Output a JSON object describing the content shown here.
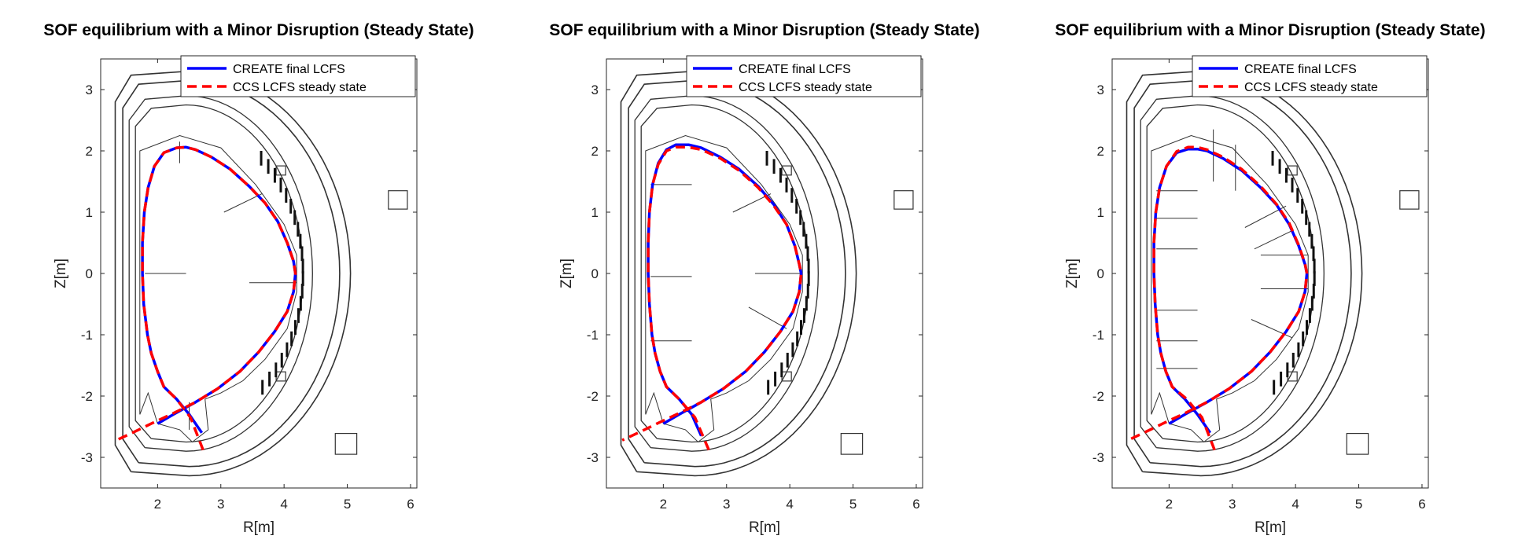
{
  "chart_data": [
    {
      "type": "line",
      "title": "SOF equilibrium with a Minor Disruption (Steady State)",
      "xlabel": "R[m]",
      "ylabel": "Z[m]",
      "xlim": [
        1.1,
        6.1
      ],
      "ylim": [
        -3.5,
        3.5
      ],
      "xticks": [
        2,
        3,
        4,
        5,
        6
      ],
      "yticks": [
        -3,
        -2,
        -1,
        0,
        1,
        2,
        3
      ],
      "grid": false,
      "legend_position": "top-right",
      "series": [
        {
          "name": "CREATE final LCFS",
          "color": "#0000ff",
          "style": "solid",
          "x": [
            2.7,
            2.5,
            2.3,
            2.1,
            2.0,
            1.9,
            1.84,
            1.78,
            1.76,
            1.76,
            1.79,
            1.85,
            1.95,
            2.1,
            2.3,
            2.45,
            2.6,
            2.85,
            3.15,
            3.45,
            3.7,
            3.9,
            4.05,
            4.15,
            4.18,
            4.15,
            4.05,
            3.85,
            3.6,
            3.3,
            2.95,
            2.6,
            2.25,
            2.0
          ],
          "y": [
            -2.6,
            -2.3,
            -2.05,
            -1.85,
            -1.6,
            -1.3,
            -1.0,
            -0.5,
            0.0,
            0.5,
            1.0,
            1.4,
            1.75,
            1.97,
            2.05,
            2.06,
            2.02,
            1.9,
            1.7,
            1.42,
            1.15,
            0.85,
            0.5,
            0.2,
            0.0,
            -0.3,
            -0.62,
            -0.95,
            -1.28,
            -1.6,
            -1.88,
            -2.1,
            -2.3,
            -2.45
          ]
        },
        {
          "name": "CCS  LCFS steady state",
          "color": "#ff0000",
          "style": "dashed",
          "x": [
            2.72,
            2.52,
            2.3,
            2.1,
            2.0,
            1.9,
            1.84,
            1.78,
            1.76,
            1.76,
            1.79,
            1.85,
            1.95,
            2.1,
            2.3,
            2.45,
            2.6,
            2.85,
            3.15,
            3.45,
            3.7,
            3.9,
            4.05,
            4.15,
            4.18,
            4.15,
            4.05,
            3.85,
            3.6,
            3.3,
            2.95,
            2.6,
            2.25,
            1.9,
            1.6,
            1.35
          ],
          "y": [
            -2.88,
            -2.35,
            -2.05,
            -1.85,
            -1.6,
            -1.3,
            -1.0,
            -0.5,
            0.0,
            0.5,
            1.0,
            1.4,
            1.75,
            1.97,
            2.05,
            2.06,
            2.02,
            1.9,
            1.7,
            1.42,
            1.15,
            0.85,
            0.5,
            0.2,
            0.0,
            -0.3,
            -0.62,
            -0.95,
            -1.28,
            -1.6,
            -1.88,
            -2.1,
            -2.28,
            -2.45,
            -2.6,
            -2.72
          ]
        }
      ]
    },
    {
      "type": "line",
      "title": "SOF equilibrium with a Minor Disruption (Steady State)",
      "xlabel": "R[m]",
      "ylabel": "Z[m]",
      "xlim": [
        1.1,
        6.1
      ],
      "ylim": [
        -3.5,
        3.5
      ],
      "xticks": [
        2,
        3,
        4,
        5,
        6
      ],
      "yticks": [
        -3,
        -2,
        -1,
        0,
        1,
        2,
        3
      ],
      "grid": false,
      "legend_position": "top-right",
      "series": [
        {
          "name": "CREATE final LCFS",
          "color": "#0000ff",
          "style": "solid",
          "x": [
            2.6,
            2.45,
            2.25,
            2.05,
            1.95,
            1.87,
            1.82,
            1.78,
            1.76,
            1.76,
            1.78,
            1.83,
            1.92,
            2.05,
            2.2,
            2.4,
            2.6,
            2.9,
            3.2,
            3.5,
            3.75,
            3.95,
            4.08,
            4.15,
            4.18,
            4.15,
            4.05,
            3.85,
            3.6,
            3.3,
            2.95,
            2.6,
            2.25,
            2.0
          ],
          "y": [
            -2.65,
            -2.3,
            -2.05,
            -1.85,
            -1.6,
            -1.3,
            -1.0,
            -0.5,
            0.0,
            0.5,
            1.0,
            1.45,
            1.8,
            2.02,
            2.1,
            2.1,
            2.05,
            1.9,
            1.7,
            1.42,
            1.12,
            0.8,
            0.45,
            0.15,
            0.0,
            -0.3,
            -0.62,
            -0.95,
            -1.28,
            -1.6,
            -1.88,
            -2.1,
            -2.3,
            -2.45
          ]
        },
        {
          "name": "CCS  LCFS steady state",
          "color": "#ff0000",
          "style": "dashed",
          "x": [
            2.72,
            2.5,
            2.25,
            2.05,
            1.95,
            1.87,
            1.82,
            1.78,
            1.76,
            1.76,
            1.78,
            1.83,
            1.92,
            2.05,
            2.2,
            2.4,
            2.6,
            2.9,
            3.2,
            3.5,
            3.75,
            3.95,
            4.08,
            4.15,
            4.18,
            4.15,
            4.05,
            3.85,
            3.6,
            3.3,
            2.95,
            2.6,
            2.25,
            1.9,
            1.6,
            1.35
          ],
          "y": [
            -2.88,
            -2.35,
            -2.05,
            -1.85,
            -1.6,
            -1.3,
            -1.0,
            -0.5,
            0.0,
            0.5,
            1.0,
            1.45,
            1.78,
            2.0,
            2.06,
            2.06,
            2.02,
            1.88,
            1.68,
            1.4,
            1.1,
            0.8,
            0.45,
            0.15,
            0.0,
            -0.3,
            -0.62,
            -0.95,
            -1.28,
            -1.6,
            -1.88,
            -2.1,
            -2.28,
            -2.45,
            -2.6,
            -2.72
          ]
        }
      ]
    },
    {
      "type": "line",
      "title": "SOF equilibrium with a Minor Disruption (Steady State)",
      "xlabel": "R[m]",
      "ylabel": "Z[m]",
      "xlim": [
        1.1,
        6.1
      ],
      "ylim": [
        -3.5,
        3.5
      ],
      "xticks": [
        2,
        3,
        4,
        5,
        6
      ],
      "yticks": [
        -3,
        -2,
        -1,
        0,
        1,
        2,
        3
      ],
      "grid": false,
      "legend_position": "top-right",
      "series": [
        {
          "name": "CREATE final LCFS",
          "color": "#0000ff",
          "style": "solid",
          "x": [
            2.65,
            2.45,
            2.25,
            2.05,
            1.95,
            1.87,
            1.82,
            1.78,
            1.76,
            1.76,
            1.79,
            1.85,
            1.96,
            2.12,
            2.3,
            2.45,
            2.6,
            2.85,
            3.15,
            3.45,
            3.7,
            3.9,
            4.05,
            4.15,
            4.18,
            4.15,
            4.05,
            3.85,
            3.6,
            3.3,
            2.95,
            2.6,
            2.25,
            2.0
          ],
          "y": [
            -2.6,
            -2.3,
            -2.05,
            -1.85,
            -1.6,
            -1.3,
            -1.0,
            -0.5,
            0.0,
            0.5,
            1.0,
            1.4,
            1.75,
            1.97,
            2.03,
            2.03,
            2.0,
            1.88,
            1.68,
            1.4,
            1.12,
            0.8,
            0.45,
            0.15,
            0.0,
            -0.3,
            -0.62,
            -0.95,
            -1.28,
            -1.6,
            -1.88,
            -2.1,
            -2.3,
            -2.45
          ]
        },
        {
          "name": "CCS  LCFS steady state",
          "color": "#ff0000",
          "style": "dashed",
          "x": [
            2.72,
            2.52,
            2.28,
            2.05,
            1.95,
            1.87,
            1.82,
            1.78,
            1.76,
            1.76,
            1.79,
            1.85,
            1.96,
            2.12,
            2.3,
            2.45,
            2.6,
            2.85,
            3.15,
            3.45,
            3.7,
            3.9,
            4.05,
            4.15,
            4.18,
            4.15,
            4.05,
            3.85,
            3.6,
            3.3,
            2.95,
            2.6,
            2.25,
            1.9,
            1.6,
            1.35
          ],
          "y": [
            -2.88,
            -2.35,
            -2.05,
            -1.85,
            -1.6,
            -1.3,
            -1.0,
            -0.5,
            0.0,
            0.5,
            1.0,
            1.4,
            1.75,
            1.99,
            2.06,
            2.06,
            2.02,
            1.9,
            1.7,
            1.42,
            1.13,
            0.82,
            0.46,
            0.16,
            0.0,
            -0.3,
            -0.62,
            -0.95,
            -1.28,
            -1.6,
            -1.88,
            -2.1,
            -2.28,
            -2.45,
            -2.6,
            -2.72
          ]
        }
      ]
    }
  ]
}
